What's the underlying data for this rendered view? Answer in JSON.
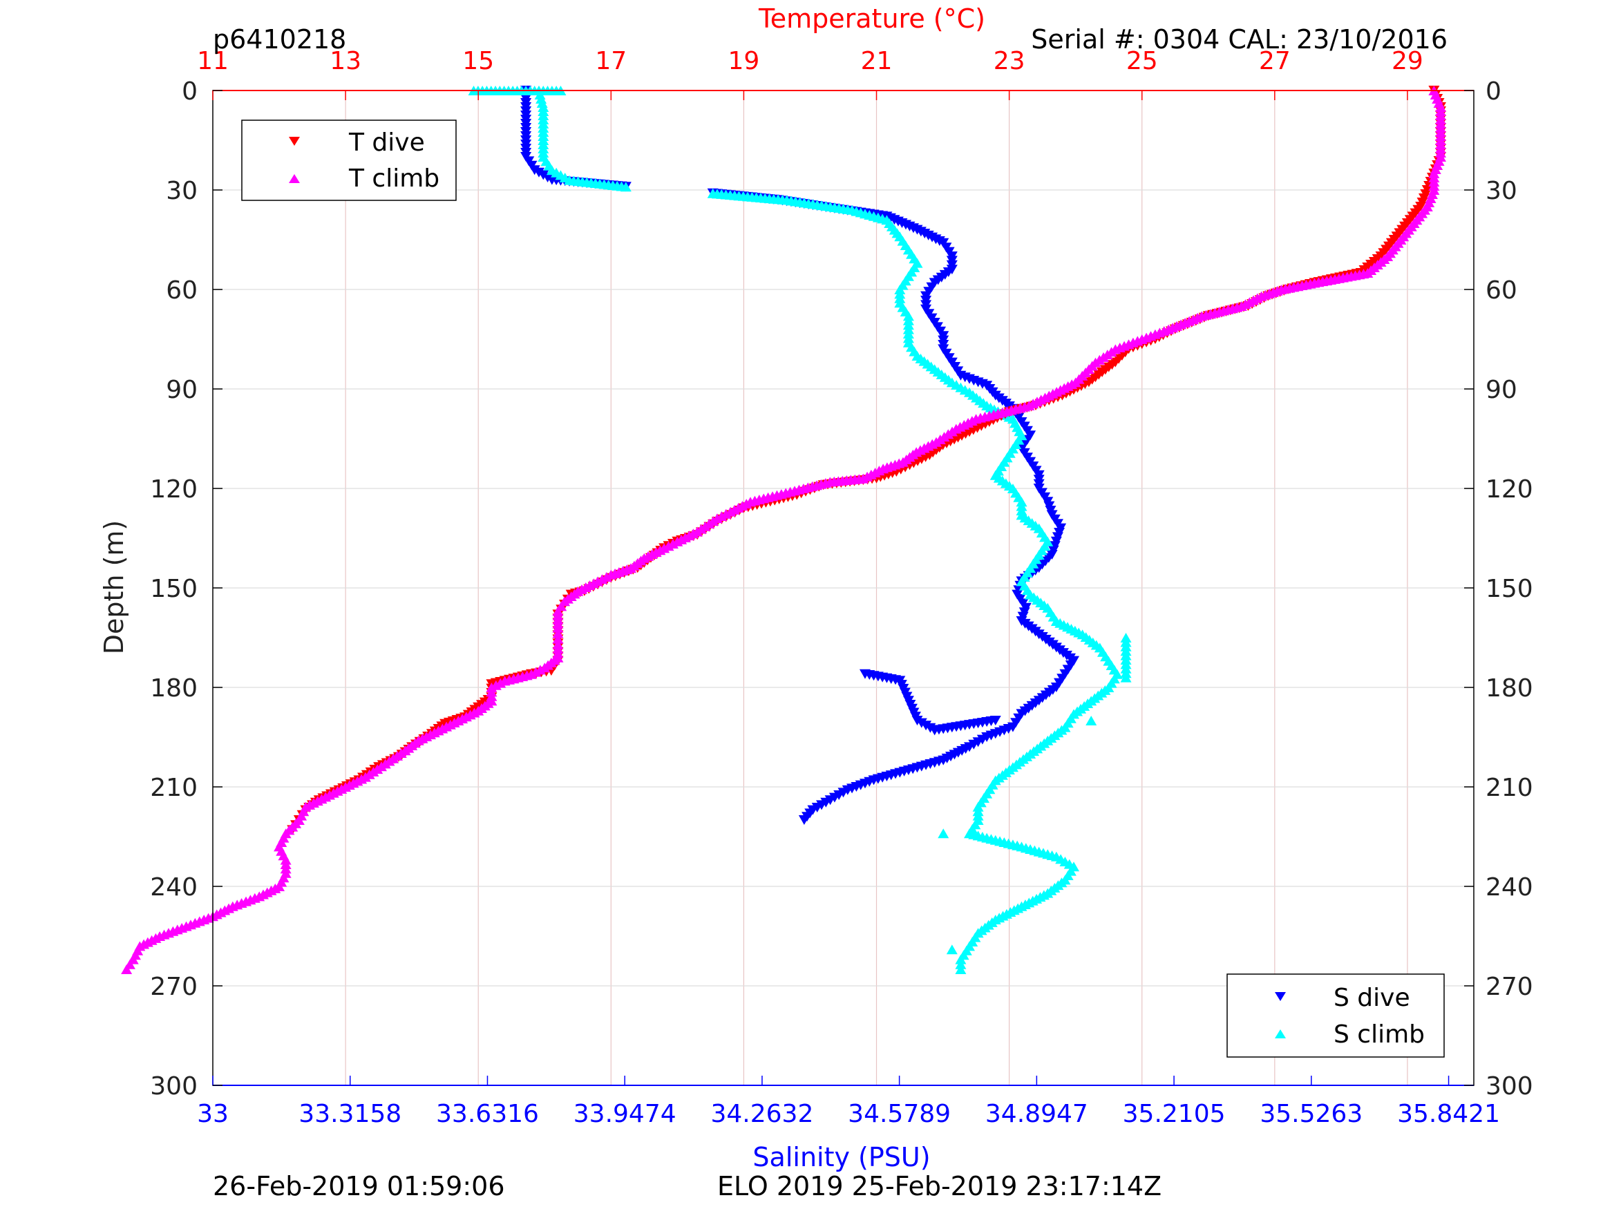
{
  "header": {
    "id_label": "p6410218",
    "serial_label": "Serial #: 0304  CAL: 23/10/2016"
  },
  "footer": {
    "left_label": "26-Feb-2019 01:59:06",
    "center_label": "ELO 2019 25-Feb-2019 23:17:14Z"
  },
  "colors": {
    "t_dive": "#ff0000",
    "t_climb": "#ff00ff",
    "s_dive": "#0000ff",
    "s_climb": "#00ffff",
    "temp_axis": "#ff0000",
    "sal_axis": "#0000ff",
    "grid_vertical": "#e8c4c4",
    "grid_horizontal": "#dddddd"
  },
  "chart_data": {
    "type": "scatter",
    "x_top_label": "Temperature (°C)",
    "x_bottom_label": "Salinity (PSU)",
    "ylabel": "Depth (m)",
    "temp_lim": [
      11,
      30
    ],
    "temp_ticks": [
      "11",
      "13",
      "15",
      "17",
      "19",
      "21",
      "23",
      "25",
      "27",
      "29"
    ],
    "sal_lim": [
      33,
      35.9
    ],
    "sal_ticks": [
      "33",
      "33.3158",
      "33.6316",
      "33.9474",
      "34.2632",
      "34.5789",
      "34.8947",
      "35.2105",
      "35.5263",
      "35.8421"
    ],
    "depth_lim": [
      0,
      300
    ],
    "depth_ticks": [
      "0",
      "30",
      "60",
      "90",
      "120",
      "150",
      "180",
      "210",
      "240",
      "270",
      "300"
    ],
    "grid": true,
    "legend_temperature": {
      "placement": "top-left",
      "entries": [
        "T dive",
        "T climb"
      ]
    },
    "legend_salinity": {
      "placement": "bottom-right",
      "entries": [
        "S dive",
        "S climb"
      ]
    },
    "series": [
      {
        "name": "T dive",
        "axis": "temperature",
        "marker": "triangle-down",
        "points": [
          [
            29.4,
            0
          ],
          [
            29.5,
            5
          ],
          [
            29.5,
            10
          ],
          [
            29.5,
            20
          ],
          [
            29.4,
            25
          ],
          [
            29.3,
            30
          ],
          [
            29.2,
            35
          ],
          [
            29.0,
            40
          ],
          [
            28.8,
            45
          ],
          [
            28.6,
            50
          ],
          [
            28.3,
            55
          ],
          [
            27.6,
            58
          ],
          [
            27.2,
            60
          ],
          [
            26.9,
            62
          ],
          [
            26.6,
            65
          ],
          [
            26.0,
            68
          ],
          [
            25.5,
            72
          ],
          [
            25.2,
            75
          ],
          [
            24.8,
            78
          ],
          [
            24.6,
            82
          ],
          [
            24.2,
            88
          ],
          [
            23.8,
            92
          ],
          [
            23.4,
            95
          ],
          [
            23.0,
            97
          ],
          [
            22.7,
            100
          ],
          [
            22.4,
            103
          ],
          [
            22.0,
            107
          ],
          [
            21.8,
            110
          ],
          [
            21.5,
            113
          ],
          [
            21.3,
            115
          ],
          [
            21.0,
            117
          ],
          [
            20.6,
            118
          ],
          [
            20.2,
            119
          ],
          [
            19.8,
            122
          ],
          [
            19.4,
            124
          ],
          [
            19.0,
            126
          ],
          [
            18.8,
            128
          ],
          [
            18.6,
            130
          ],
          [
            18.3,
            134
          ],
          [
            18.0,
            136
          ],
          [
            17.8,
            138
          ],
          [
            17.6,
            141
          ],
          [
            17.4,
            144
          ],
          [
            17.0,
            147
          ],
          [
            16.8,
            149
          ],
          [
            16.6,
            151
          ],
          [
            16.4,
            152
          ],
          [
            16.3,
            155
          ],
          [
            16.2,
            158
          ],
          [
            16.2,
            163
          ],
          [
            16.2,
            168
          ],
          [
            16.2,
            172
          ],
          [
            16.1,
            175
          ],
          [
            15.8,
            176
          ],
          [
            15.4,
            178
          ],
          [
            15.2,
            179
          ],
          [
            15.2,
            183
          ],
          [
            15.0,
            186
          ],
          [
            14.8,
            189
          ],
          [
            14.5,
            191
          ],
          [
            14.3,
            194
          ],
          [
            14.0,
            198
          ],
          [
            13.8,
            201
          ],
          [
            13.5,
            204
          ],
          [
            13.2,
            208
          ],
          [
            12.9,
            211
          ],
          [
            12.6,
            214
          ],
          [
            12.4,
            217
          ],
          [
            12.3,
            220
          ],
          [
            12.2,
            223
          ]
        ]
      },
      {
        "name": "T climb",
        "axis": "temperature",
        "marker": "triangle-up",
        "points": [
          [
            29.4,
            0
          ],
          [
            29.5,
            5
          ],
          [
            29.5,
            10
          ],
          [
            29.5,
            20
          ],
          [
            29.4,
            25
          ],
          [
            29.4,
            30
          ],
          [
            29.3,
            35
          ],
          [
            29.1,
            40
          ],
          [
            28.9,
            45
          ],
          [
            28.7,
            50
          ],
          [
            28.4,
            55
          ],
          [
            27.6,
            58
          ],
          [
            27.1,
            60
          ],
          [
            26.8,
            62
          ],
          [
            26.5,
            65
          ],
          [
            25.9,
            68
          ],
          [
            25.4,
            72
          ],
          [
            25.0,
            75
          ],
          [
            24.6,
            78
          ],
          [
            24.3,
            82
          ],
          [
            24.0,
            88
          ],
          [
            23.6,
            92
          ],
          [
            23.3,
            95
          ],
          [
            22.9,
            97
          ],
          [
            22.5,
            99
          ],
          [
            22.2,
            102
          ],
          [
            21.9,
            106
          ],
          [
            21.6,
            109
          ],
          [
            21.4,
            112
          ],
          [
            21.1,
            114
          ],
          [
            20.8,
            117
          ],
          [
            20.3,
            118
          ],
          [
            19.9,
            120
          ],
          [
            19.5,
            122
          ],
          [
            19.1,
            124
          ],
          [
            18.8,
            127
          ],
          [
            18.6,
            129
          ],
          [
            18.3,
            133
          ],
          [
            18.0,
            136
          ],
          [
            17.8,
            138
          ],
          [
            17.5,
            141
          ],
          [
            17.3,
            144
          ],
          [
            17.0,
            146
          ],
          [
            16.8,
            148
          ],
          [
            16.5,
            151
          ],
          [
            16.3,
            154
          ],
          [
            16.2,
            157
          ],
          [
            16.2,
            162
          ],
          [
            16.2,
            167
          ],
          [
            16.2,
            171
          ],
          [
            16.0,
            174
          ],
          [
            15.8,
            176
          ],
          [
            15.4,
            178
          ],
          [
            15.2,
            180
          ],
          [
            15.2,
            184
          ],
          [
            15.0,
            187
          ],
          [
            14.7,
            190
          ],
          [
            14.4,
            193
          ],
          [
            14.1,
            196
          ],
          [
            13.9,
            199
          ],
          [
            13.6,
            203
          ],
          [
            13.3,
            207
          ],
          [
            13.0,
            210
          ],
          [
            12.7,
            213
          ],
          [
            12.4,
            216
          ],
          [
            12.3,
            220
          ],
          [
            12.1,
            224
          ],
          [
            12.0,
            228
          ],
          [
            12.1,
            232
          ],
          [
            12.1,
            236
          ],
          [
            12.0,
            240
          ],
          [
            11.7,
            243
          ],
          [
            11.3,
            246
          ],
          [
            11.0,
            249
          ],
          [
            10.6,
            252
          ],
          [
            10.2,
            255
          ],
          [
            9.9,
            258
          ],
          [
            9.8,
            262
          ],
          [
            9.7,
            265
          ]
        ]
      },
      {
        "name": "S dive",
        "axis": "salinity",
        "marker": "triangle-down",
        "points": [
          [
            33.72,
            0
          ],
          [
            33.72,
            5
          ],
          [
            33.72,
            10
          ],
          [
            33.72,
            15
          ],
          [
            33.72,
            20
          ],
          [
            33.74,
            24
          ],
          [
            33.78,
            27
          ],
          [
            33.95,
            29
          ],
          [
            34.15,
            31
          ],
          [
            34.3,
            33
          ],
          [
            34.45,
            36
          ],
          [
            34.55,
            38
          ],
          [
            34.62,
            42
          ],
          [
            34.68,
            46
          ],
          [
            34.7,
            50
          ],
          [
            34.7,
            54
          ],
          [
            34.66,
            58
          ],
          [
            34.64,
            62
          ],
          [
            34.64,
            66
          ],
          [
            34.66,
            70
          ],
          [
            34.68,
            74
          ],
          [
            34.68,
            78
          ],
          [
            34.7,
            82
          ],
          [
            34.72,
            86
          ],
          [
            34.78,
            89
          ],
          [
            34.8,
            92
          ],
          [
            34.84,
            96
          ],
          [
            34.86,
            100
          ],
          [
            34.88,
            104
          ],
          [
            34.86,
            108
          ],
          [
            34.88,
            112
          ],
          [
            34.9,
            116
          ],
          [
            34.9,
            120
          ],
          [
            34.92,
            124
          ],
          [
            34.93,
            128
          ],
          [
            34.95,
            132
          ],
          [
            34.94,
            136
          ],
          [
            34.93,
            140
          ],
          [
            34.9,
            144
          ],
          [
            34.86,
            148
          ],
          [
            34.85,
            152
          ],
          [
            34.87,
            156
          ],
          [
            34.86,
            160
          ],
          [
            34.9,
            164
          ],
          [
            34.94,
            168
          ],
          [
            34.98,
            172
          ],
          [
            34.96,
            176
          ],
          [
            34.94,
            180
          ],
          [
            34.9,
            184
          ],
          [
            34.86,
            188
          ],
          [
            34.84,
            192
          ],
          [
            34.78,
            195
          ],
          [
            34.74,
            198
          ],
          [
            34.68,
            202
          ],
          [
            34.6,
            205
          ],
          [
            34.52,
            208
          ],
          [
            34.46,
            211
          ],
          [
            34.42,
            214
          ],
          [
            34.38,
            217
          ],
          [
            34.36,
            220
          ],
          [
            34.5,
            176
          ],
          [
            34.58,
            178
          ],
          [
            34.62,
            190
          ],
          [
            34.66,
            193
          ],
          [
            34.8,
            190
          ]
        ]
      },
      {
        "name": "S climb",
        "axis": "salinity",
        "marker": "triangle-up",
        "points": [
          [
            33.75,
            0
          ],
          [
            33.76,
            5
          ],
          [
            33.76,
            10
          ],
          [
            33.76,
            15
          ],
          [
            33.76,
            20
          ],
          [
            33.78,
            24
          ],
          [
            33.82,
            27
          ],
          [
            33.95,
            29
          ],
          [
            34.15,
            31
          ],
          [
            34.32,
            33
          ],
          [
            34.47,
            36
          ],
          [
            34.55,
            39
          ],
          [
            34.58,
            44
          ],
          [
            34.6,
            48
          ],
          [
            34.62,
            52
          ],
          [
            34.6,
            56
          ],
          [
            34.58,
            60
          ],
          [
            34.58,
            64
          ],
          [
            34.6,
            68
          ],
          [
            34.6,
            72
          ],
          [
            34.6,
            76
          ],
          [
            34.62,
            80
          ],
          [
            34.66,
            84
          ],
          [
            34.7,
            88
          ],
          [
            34.74,
            91
          ],
          [
            34.78,
            95
          ],
          [
            34.84,
            99
          ],
          [
            34.86,
            104
          ],
          [
            34.84,
            108
          ],
          [
            34.82,
            112
          ],
          [
            34.8,
            116
          ],
          [
            34.84,
            120
          ],
          [
            34.86,
            124
          ],
          [
            34.86,
            128
          ],
          [
            34.9,
            132
          ],
          [
            34.92,
            136
          ],
          [
            34.9,
            140
          ],
          [
            34.88,
            144
          ],
          [
            34.86,
            148
          ],
          [
            34.88,
            152
          ],
          [
            34.92,
            156
          ],
          [
            34.94,
            160
          ],
          [
            35.0,
            164
          ],
          [
            35.04,
            168
          ],
          [
            35.06,
            172
          ],
          [
            35.08,
            176
          ],
          [
            35.06,
            180
          ],
          [
            35.02,
            184
          ],
          [
            34.98,
            188
          ],
          [
            34.96,
            192
          ],
          [
            34.92,
            196
          ],
          [
            34.88,
            200
          ],
          [
            34.84,
            204
          ],
          [
            34.8,
            208
          ],
          [
            34.78,
            212
          ],
          [
            34.76,
            216
          ],
          [
            34.76,
            220
          ],
          [
            34.74,
            224
          ],
          [
            34.86,
            228
          ],
          [
            34.94,
            231
          ],
          [
            34.98,
            234
          ],
          [
            34.96,
            238
          ],
          [
            34.92,
            242
          ],
          [
            34.86,
            246
          ],
          [
            34.8,
            250
          ],
          [
            34.76,
            254
          ],
          [
            34.74,
            258
          ],
          [
            34.72,
            262
          ],
          [
            34.72,
            265
          ],
          [
            33.6,
            0
          ],
          [
            33.66,
            0
          ],
          [
            33.8,
            0
          ],
          [
            34.68,
            224
          ],
          [
            34.7,
            259
          ],
          [
            35.02,
            190
          ],
          [
            35.1,
            165
          ],
          [
            35.1,
            177
          ]
        ]
      }
    ]
  }
}
